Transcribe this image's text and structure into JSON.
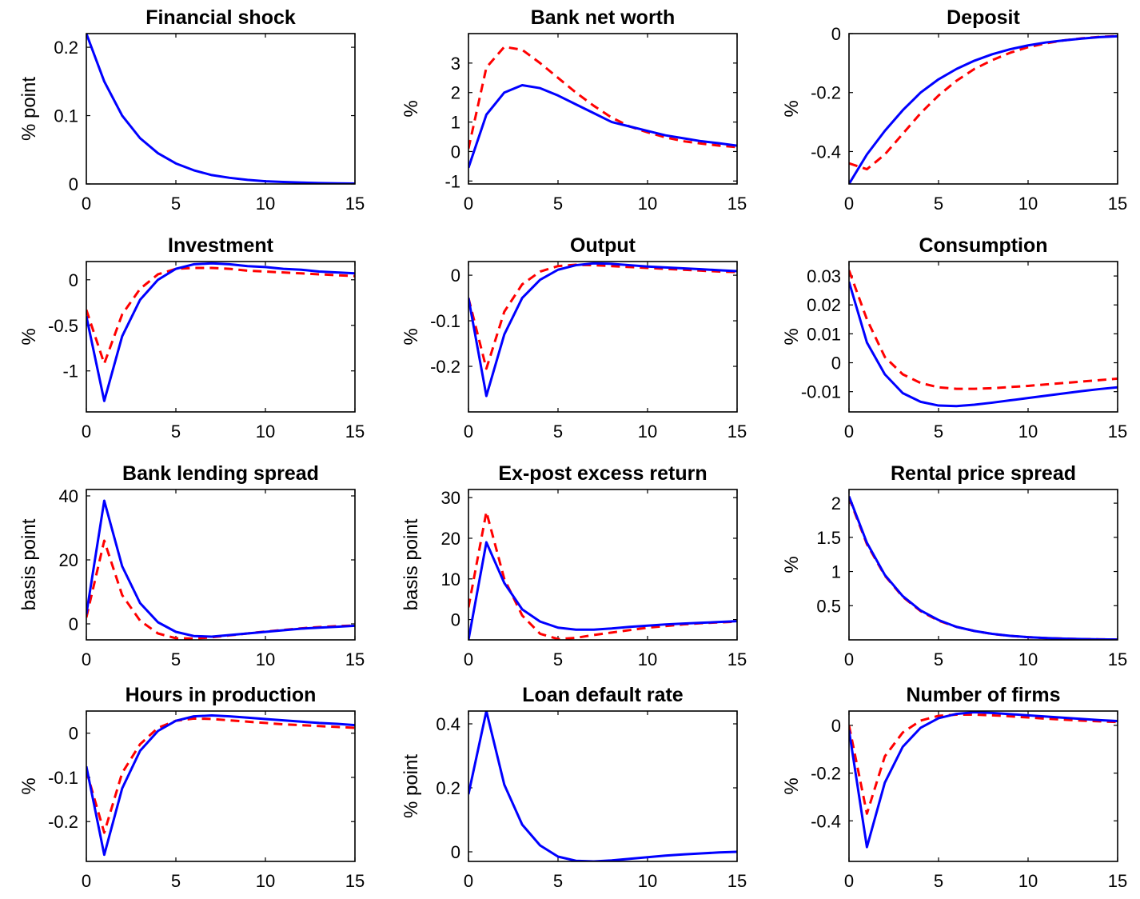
{
  "colors": {
    "series_solid": "#0000ff",
    "series_dashed": "#ff0000",
    "axes": "#000000",
    "background": "#ffffff"
  },
  "chart_data": [
    {
      "type": "line",
      "title": "Financial shock",
      "xlabel": "",
      "ylabel": "% point",
      "xlim": [
        0,
        15
      ],
      "ylim": [
        0,
        0.22
      ],
      "yticks": [
        0,
        0.1,
        0.2
      ],
      "ytick_labels": [
        "0",
        "0.1",
        "0.2"
      ],
      "xticks": [
        0,
        5,
        10,
        15
      ],
      "grid": false,
      "x": [
        0,
        1,
        2,
        3,
        4,
        5,
        6,
        7,
        8,
        9,
        10,
        11,
        12,
        13,
        14,
        15
      ],
      "series": [
        {
          "style": "solid",
          "color": "#0000ff",
          "values": [
            0.22,
            0.15,
            0.1,
            0.067,
            0.045,
            0.03,
            0.02,
            0.013,
            0.009,
            0.006,
            0.004,
            0.003,
            0.002,
            0.0013,
            0.0009,
            0.0006
          ]
        }
      ]
    },
    {
      "type": "line",
      "title": "Bank net worth",
      "xlabel": "",
      "ylabel": "%",
      "xlim": [
        0,
        15
      ],
      "ylim": [
        -1.1,
        4
      ],
      "yticks": [
        -1,
        0,
        1,
        2,
        3
      ],
      "ytick_labels": [
        "-1",
        "0",
        "1",
        "2",
        "3"
      ],
      "xticks": [
        0,
        5,
        10,
        15
      ],
      "grid": false,
      "x": [
        0,
        1,
        2,
        3,
        4,
        5,
        6,
        7,
        8,
        9,
        10,
        11,
        12,
        13,
        14,
        15
      ],
      "series": [
        {
          "style": "solid",
          "color": "#0000ff",
          "values": [
            -0.55,
            1.25,
            2.0,
            2.25,
            2.15,
            1.9,
            1.6,
            1.3,
            1.0,
            0.85,
            0.7,
            0.55,
            0.45,
            0.35,
            0.28,
            0.2
          ]
        },
        {
          "style": "dashed",
          "color": "#ff0000",
          "values": [
            0.1,
            2.85,
            3.55,
            3.45,
            3.0,
            2.5,
            2.0,
            1.55,
            1.15,
            0.85,
            0.65,
            0.48,
            0.35,
            0.27,
            0.2,
            0.15
          ]
        }
      ]
    },
    {
      "type": "line",
      "title": "Deposit",
      "xlabel": "",
      "ylabel": "%",
      "xlim": [
        0,
        15
      ],
      "ylim": [
        -0.51,
        0.0
      ],
      "yticks": [
        -0.4,
        -0.2,
        0
      ],
      "ytick_labels": [
        "-0.4",
        "-0.2",
        "0"
      ],
      "xticks": [
        0,
        5,
        10,
        15
      ],
      "grid": false,
      "x": [
        0,
        1,
        2,
        3,
        4,
        5,
        6,
        7,
        8,
        9,
        10,
        11,
        12,
        13,
        14,
        15
      ],
      "series": [
        {
          "style": "solid",
          "color": "#0000ff",
          "values": [
            -0.51,
            -0.41,
            -0.33,
            -0.26,
            -0.2,
            -0.155,
            -0.12,
            -0.092,
            -0.07,
            -0.053,
            -0.04,
            -0.03,
            -0.023,
            -0.017,
            -0.012,
            -0.009
          ]
        },
        {
          "style": "dashed",
          "color": "#ff0000",
          "values": [
            -0.44,
            -0.46,
            -0.41,
            -0.34,
            -0.27,
            -0.21,
            -0.16,
            -0.12,
            -0.09,
            -0.065,
            -0.046,
            -0.033,
            -0.023,
            -0.016,
            -0.011,
            -0.008
          ]
        }
      ]
    },
    {
      "type": "line",
      "title": "Investment",
      "xlabel": "",
      "ylabel": "%",
      "xlim": [
        0,
        15
      ],
      "ylim": [
        -1.45,
        0.2
      ],
      "yticks": [
        -1,
        -0.5,
        0
      ],
      "ytick_labels": [
        "-1",
        "-0.5",
        "0"
      ],
      "xticks": [
        0,
        5,
        10,
        15
      ],
      "grid": false,
      "x": [
        0,
        1,
        2,
        3,
        4,
        5,
        6,
        7,
        8,
        9,
        10,
        11,
        12,
        13,
        14,
        15
      ],
      "series": [
        {
          "style": "solid",
          "color": "#0000ff",
          "values": [
            -0.4,
            -1.33,
            -0.62,
            -0.22,
            0.0,
            0.12,
            0.17,
            0.18,
            0.17,
            0.15,
            0.14,
            0.12,
            0.11,
            0.09,
            0.08,
            0.07
          ]
        },
        {
          "style": "dashed",
          "color": "#ff0000",
          "values": [
            -0.33,
            -0.92,
            -0.38,
            -0.1,
            0.06,
            0.12,
            0.13,
            0.13,
            0.12,
            0.1,
            0.09,
            0.08,
            0.07,
            0.06,
            0.05,
            0.04
          ]
        }
      ]
    },
    {
      "type": "line",
      "title": "Output",
      "xlabel": "",
      "ylabel": "%",
      "xlim": [
        0,
        15
      ],
      "ylim": [
        -0.3,
        0.03
      ],
      "yticks": [
        -0.2,
        -0.1,
        0
      ],
      "ytick_labels": [
        "-0.2",
        "-0.1",
        "0"
      ],
      "xticks": [
        0,
        5,
        10,
        15
      ],
      "grid": false,
      "x": [
        0,
        1,
        2,
        3,
        4,
        5,
        6,
        7,
        8,
        9,
        10,
        11,
        12,
        13,
        14,
        15
      ],
      "series": [
        {
          "style": "solid",
          "color": "#0000ff",
          "values": [
            -0.05,
            -0.265,
            -0.13,
            -0.05,
            -0.01,
            0.012,
            0.022,
            0.026,
            0.025,
            0.022,
            0.019,
            0.017,
            0.015,
            0.013,
            0.011,
            0.009
          ]
        },
        {
          "style": "dashed",
          "color": "#ff0000",
          "values": [
            -0.05,
            -0.205,
            -0.08,
            -0.02,
            0.008,
            0.02,
            0.023,
            0.022,
            0.02,
            0.018,
            0.016,
            0.014,
            0.012,
            0.01,
            0.008,
            0.007
          ]
        }
      ]
    },
    {
      "type": "line",
      "title": "Consumption",
      "xlabel": "",
      "ylabel": "%",
      "xlim": [
        0,
        15
      ],
      "ylim": [
        -0.017,
        0.035
      ],
      "yticks": [
        -0.01,
        0,
        0.01,
        0.02,
        0.03
      ],
      "ytick_labels": [
        "-0.01",
        "0",
        "0.01",
        "0.02",
        "0.03"
      ],
      "xticks": [
        0,
        5,
        10,
        15
      ],
      "grid": false,
      "x": [
        0,
        1,
        2,
        3,
        4,
        5,
        6,
        7,
        8,
        9,
        10,
        11,
        12,
        13,
        14,
        15
      ],
      "series": [
        {
          "style": "solid",
          "color": "#0000ff",
          "values": [
            0.028,
            0.007,
            -0.004,
            -0.0105,
            -0.0135,
            -0.0148,
            -0.015,
            -0.0145,
            -0.0138,
            -0.013,
            -0.0122,
            -0.0114,
            -0.0106,
            -0.0098,
            -0.0091,
            -0.0085
          ]
        },
        {
          "style": "dashed",
          "color": "#ff0000",
          "values": [
            0.032,
            0.015,
            0.002,
            -0.004,
            -0.007,
            -0.0085,
            -0.009,
            -0.009,
            -0.0088,
            -0.0084,
            -0.008,
            -0.0075,
            -0.007,
            -0.0065,
            -0.006,
            -0.0055
          ]
        }
      ]
    },
    {
      "type": "line",
      "title": "Bank lending spread",
      "xlabel": "",
      "ylabel": "basis point",
      "xlim": [
        0,
        15
      ],
      "ylim": [
        -5,
        42
      ],
      "yticks": [
        0,
        20,
        40
      ],
      "ytick_labels": [
        "0",
        "20",
        "40"
      ],
      "xticks": [
        0,
        5,
        10,
        15
      ],
      "grid": false,
      "x": [
        0,
        1,
        2,
        3,
        4,
        5,
        6,
        7,
        8,
        9,
        10,
        11,
        12,
        13,
        14,
        15
      ],
      "series": [
        {
          "style": "solid",
          "color": "#0000ff",
          "values": [
            3,
            38.5,
            18,
            6.5,
            0.5,
            -2.5,
            -3.8,
            -4.0,
            -3.5,
            -3.0,
            -2.5,
            -2.0,
            -1.5,
            -1.2,
            -0.9,
            -0.6
          ]
        },
        {
          "style": "dashed",
          "color": "#ff0000",
          "values": [
            2,
            26,
            9,
            1,
            -3,
            -4.5,
            -4.6,
            -4.2,
            -3.6,
            -3.0,
            -2.4,
            -1.9,
            -1.4,
            -1.0,
            -0.7,
            -0.5
          ]
        }
      ]
    },
    {
      "type": "line",
      "title": "Ex-post excess return",
      "xlabel": "",
      "ylabel": "basis point",
      "xlim": [
        0,
        15
      ],
      "ylim": [
        -5,
        32
      ],
      "yticks": [
        0,
        10,
        20,
        30
      ],
      "ytick_labels": [
        "0",
        "10",
        "20",
        "30"
      ],
      "xticks": [
        0,
        5,
        10,
        15
      ],
      "grid": false,
      "x": [
        0,
        1,
        2,
        3,
        4,
        5,
        6,
        7,
        8,
        9,
        10,
        11,
        12,
        13,
        14,
        15
      ],
      "series": [
        {
          "style": "solid",
          "color": "#0000ff",
          "values": [
            -5,
            19,
            9,
            2.5,
            -0.5,
            -2,
            -2.5,
            -2.5,
            -2.2,
            -1.8,
            -1.5,
            -1.2,
            -1.0,
            -0.8,
            -0.6,
            -0.4
          ]
        },
        {
          "style": "dashed",
          "color": "#ff0000",
          "values": [
            3,
            26.5,
            10,
            1,
            -3.5,
            -4.8,
            -4.5,
            -3.8,
            -3.2,
            -2.6,
            -2.0,
            -1.6,
            -1.2,
            -0.9,
            -0.7,
            -0.5
          ]
        }
      ]
    },
    {
      "type": "line",
      "title": "Rental price spread",
      "xlabel": "",
      "ylabel": "%",
      "xlim": [
        0,
        15
      ],
      "ylim": [
        0,
        2.2
      ],
      "yticks": [
        0.5,
        1,
        1.5,
        2
      ],
      "ytick_labels": [
        "0.5",
        "1",
        "1.5",
        "2"
      ],
      "xticks": [
        0,
        5,
        10,
        15
      ],
      "grid": false,
      "x": [
        0,
        1,
        2,
        3,
        4,
        5,
        6,
        7,
        8,
        9,
        10,
        11,
        12,
        13,
        14,
        15
      ],
      "series": [
        {
          "style": "solid",
          "color": "#0000ff",
          "values": [
            2.1,
            1.42,
            0.95,
            0.64,
            0.43,
            0.29,
            0.19,
            0.13,
            0.088,
            0.059,
            0.04,
            0.027,
            0.018,
            0.012,
            0.008,
            0.005
          ]
        },
        {
          "style": "dashed",
          "color": "#ff0000",
          "values": [
            2.08,
            1.4,
            0.94,
            0.63,
            0.42,
            0.28,
            0.19,
            0.13,
            0.086,
            0.058,
            0.039,
            0.026,
            0.018,
            0.012,
            0.008,
            0.005
          ]
        }
      ]
    },
    {
      "type": "line",
      "title": "Hours in production",
      "xlabel": "",
      "ylabel": "%",
      "xlim": [
        0,
        15
      ],
      "ylim": [
        -0.29,
        0.05
      ],
      "yticks": [
        -0.2,
        -0.1,
        0
      ],
      "ytick_labels": [
        "-0.2",
        "-0.1",
        "0"
      ],
      "xticks": [
        0,
        5,
        10,
        15
      ],
      "grid": false,
      "x": [
        0,
        1,
        2,
        3,
        4,
        5,
        6,
        7,
        8,
        9,
        10,
        11,
        12,
        13,
        14,
        15
      ],
      "series": [
        {
          "style": "solid",
          "color": "#0000ff",
          "values": [
            -0.075,
            -0.275,
            -0.125,
            -0.04,
            0.005,
            0.028,
            0.038,
            0.04,
            0.038,
            0.035,
            0.032,
            0.029,
            0.026,
            0.023,
            0.021,
            0.018
          ]
        },
        {
          "style": "dashed",
          "color": "#ff0000",
          "values": [
            -0.085,
            -0.225,
            -0.09,
            -0.025,
            0.012,
            0.028,
            0.033,
            0.032,
            0.029,
            0.026,
            0.023,
            0.02,
            0.018,
            0.016,
            0.014,
            0.012
          ]
        }
      ]
    },
    {
      "type": "line",
      "title": "Loan default rate",
      "xlabel": "",
      "ylabel": "% point",
      "xlim": [
        0,
        15
      ],
      "ylim": [
        -0.03,
        0.44
      ],
      "yticks": [
        0,
        0.2,
        0.4
      ],
      "ytick_labels": [
        "0",
        "0.2",
        "0.4"
      ],
      "xticks": [
        0,
        5,
        10,
        15
      ],
      "grid": false,
      "x": [
        0,
        1,
        2,
        3,
        4,
        5,
        6,
        7,
        8,
        9,
        10,
        11,
        12,
        13,
        14,
        15
      ],
      "series": [
        {
          "style": "solid",
          "color": "#0000ff",
          "values": [
            0.18,
            0.44,
            0.21,
            0.085,
            0.02,
            -0.015,
            -0.028,
            -0.03,
            -0.027,
            -0.022,
            -0.017,
            -0.012,
            -0.008,
            -0.005,
            -0.002,
            0.0
          ]
        }
      ]
    },
    {
      "type": "line",
      "title": "Number of firms",
      "xlabel": "",
      "ylabel": "%",
      "xlim": [
        0,
        15
      ],
      "ylim": [
        -0.57,
        0.06
      ],
      "yticks": [
        -0.4,
        -0.2,
        0
      ],
      "ytick_labels": [
        "-0.4",
        "-0.2",
        "0"
      ],
      "xticks": [
        0,
        5,
        10,
        15
      ],
      "grid": false,
      "x": [
        0,
        1,
        2,
        3,
        4,
        5,
        6,
        7,
        8,
        9,
        10,
        11,
        12,
        13,
        14,
        15
      ],
      "series": [
        {
          "style": "solid",
          "color": "#0000ff",
          "values": [
            -0.02,
            -0.51,
            -0.24,
            -0.09,
            -0.01,
            0.03,
            0.048,
            0.055,
            0.052,
            0.047,
            0.042,
            0.037,
            0.032,
            0.027,
            0.022,
            0.018
          ]
        },
        {
          "style": "dashed",
          "color": "#ff0000",
          "values": [
            0.0,
            -0.37,
            -0.13,
            -0.03,
            0.02,
            0.04,
            0.045,
            0.045,
            0.042,
            0.038,
            0.033,
            0.028,
            0.024,
            0.02,
            0.017,
            0.014
          ]
        }
      ]
    }
  ]
}
